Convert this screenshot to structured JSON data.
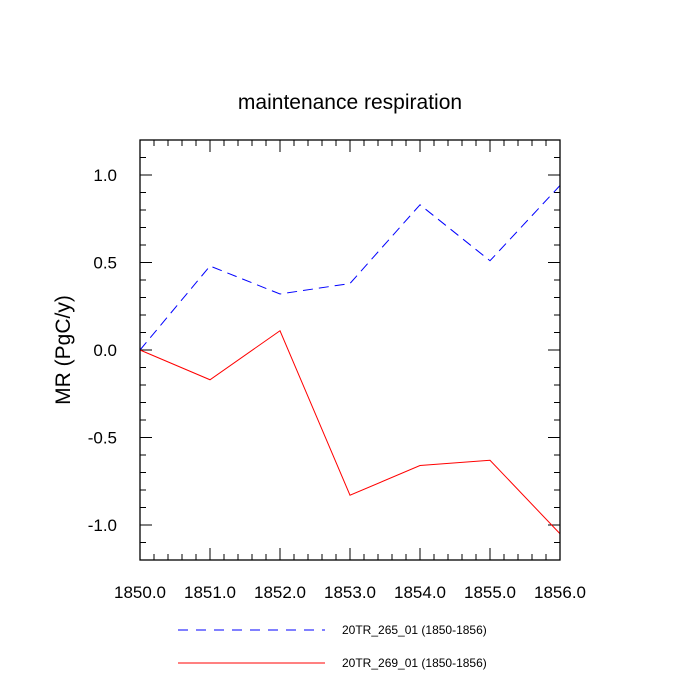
{
  "chart_data": {
    "type": "line",
    "title": "maintenance respiration",
    "xlabel": "",
    "ylabel": "MR  (PgC/y)",
    "xlim": [
      1850,
      1856
    ],
    "ylim": [
      -1.2,
      1.2
    ],
    "x": [
      1850,
      1851,
      1852,
      1853,
      1854,
      1855,
      1856
    ],
    "x_ticks": [
      1850,
      1851,
      1852,
      1853,
      1854,
      1855,
      1856
    ],
    "x_tick_labels": [
      "1850.0",
      "1851.0",
      "1852.0",
      "1853.0",
      "1854.0",
      "1855.0",
      "1856.0"
    ],
    "y_ticks": [
      -1.0,
      -0.5,
      0.0,
      0.5,
      1.0
    ],
    "y_tick_labels": [
      "-1.0",
      "-0.5",
      "0.0",
      "0.5",
      "1.0"
    ],
    "grid": false,
    "legend_position": "bottom",
    "series": [
      {
        "name": "20TR_265_01 (1850-1856)",
        "color": "#0000ff",
        "dash": true,
        "values": [
          0.0,
          0.48,
          0.32,
          0.38,
          0.83,
          0.51,
          0.94
        ]
      },
      {
        "name": "20TR_269_01 (1850-1856)",
        "color": "#ff0000",
        "dash": false,
        "values": [
          0.0,
          -0.17,
          0.11,
          -0.83,
          -0.66,
          -0.63,
          -1.05
        ]
      }
    ]
  }
}
